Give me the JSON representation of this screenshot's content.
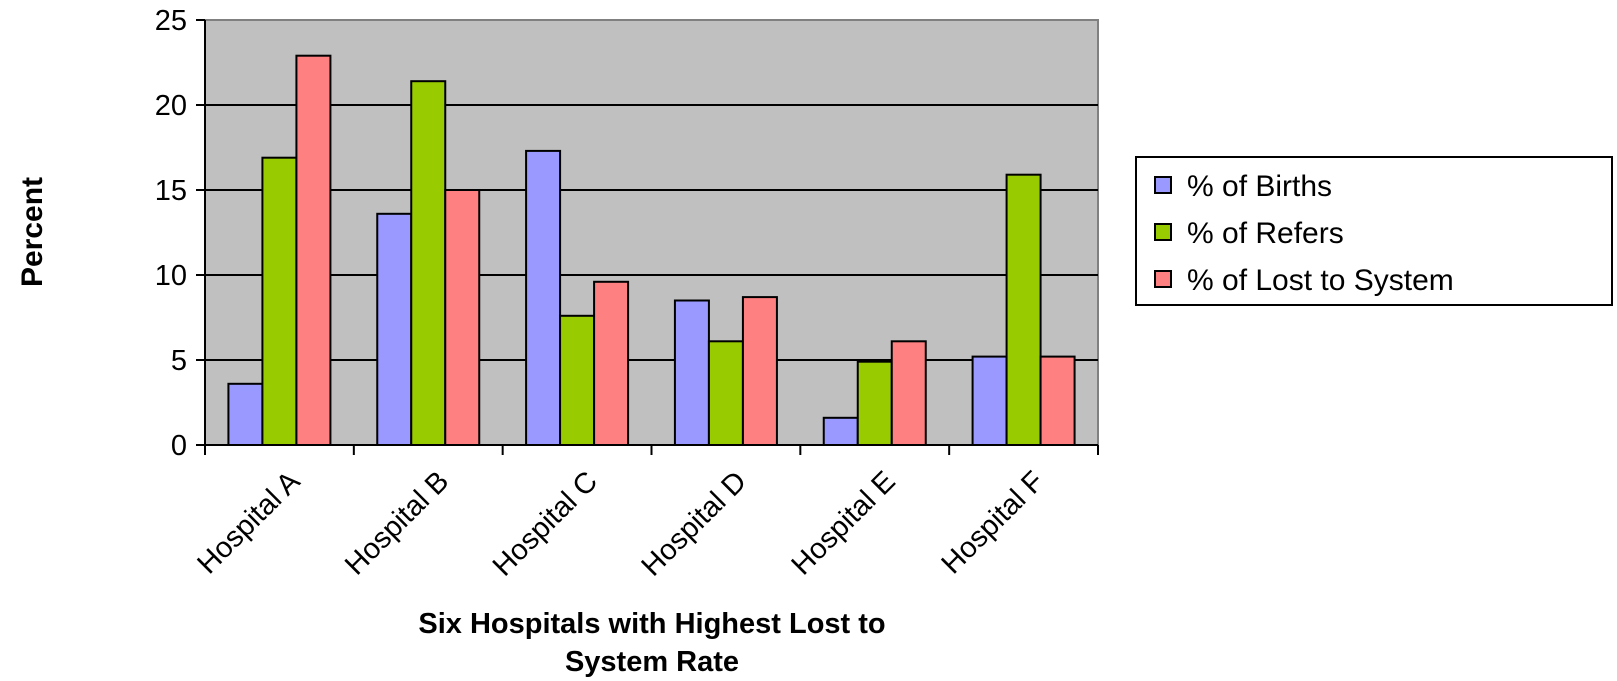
{
  "chart_data": {
    "type": "bar",
    "categories": [
      "Hospital A",
      "Hospital B",
      "Hospital C",
      "Hospital D",
      "Hospital E",
      "Hospital F"
    ],
    "series": [
      {
        "name": "% of Births",
        "color": "#9999ff",
        "values": [
          3.6,
          13.6,
          17.3,
          8.5,
          1.6,
          5.2
        ]
      },
      {
        "name": "% of Refers",
        "color": "#99cc00",
        "values": [
          16.9,
          21.4,
          7.6,
          6.1,
          4.9,
          15.9
        ]
      },
      {
        "name": "% of Lost to System",
        "color": "#ff8080",
        "values": [
          22.9,
          15.0,
          9.6,
          8.7,
          6.1,
          5.2
        ]
      }
    ],
    "xlabel": "Six Hospitals with Highest Lost to System Rate",
    "xlabel_lines": [
      "Six Hospitals with Highest Lost to",
      "System Rate"
    ],
    "ylabel": "Percent",
    "ylim": [
      0,
      25
    ],
    "yticks": [
      0,
      5,
      10,
      15,
      20,
      25
    ],
    "grid": true,
    "plot_background": "#c0c0c0",
    "legend_position": "right"
  }
}
